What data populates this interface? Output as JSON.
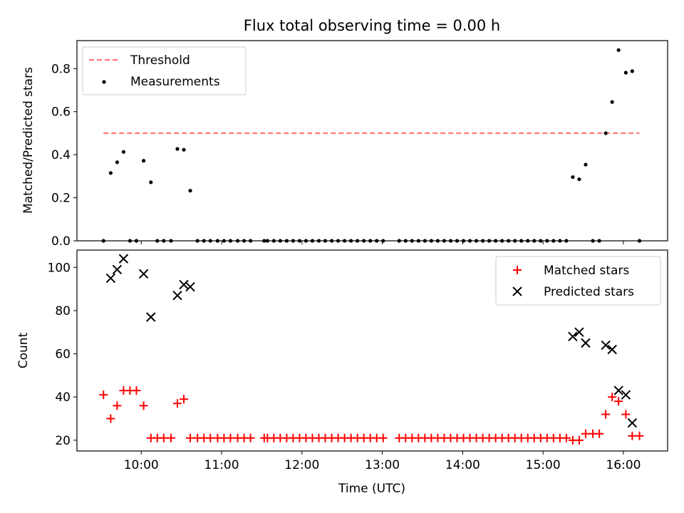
{
  "chart_data": [
    {
      "type": "scatter",
      "title": "Flux total observing time = 0.00 h",
      "xlabel": "",
      "ylabel": "Matched/Predicted stars",
      "xlim": [
        9.2,
        16.55
      ],
      "ylim": [
        0,
        0.93
      ],
      "xticks": [
        10,
        11,
        12,
        13,
        14,
        15,
        16
      ],
      "yticks": [
        0.0,
        0.2,
        0.4,
        0.6,
        0.8
      ],
      "ytick_labels": [
        "0.0",
        "0.2",
        "0.4",
        "0.6",
        "0.8"
      ],
      "grid": false,
      "legend": {
        "position": "top-left",
        "entries": [
          "Threshold",
          "Measurements"
        ]
      },
      "threshold": {
        "name": "Threshold",
        "value": 0.5,
        "x_range": [
          9.53,
          16.2
        ],
        "color": "#ff6b6b",
        "style": "dashed"
      },
      "series": [
        {
          "name": "Measurements",
          "color": "#000000",
          "marker": "dot",
          "points": [
            [
              9.53,
              0.0
            ],
            [
              9.62,
              0.315
            ],
            [
              9.7,
              0.365
            ],
            [
              9.78,
              0.413
            ],
            [
              9.86,
              0.0
            ],
            [
              9.94,
              0.0
            ],
            [
              10.03,
              0.372
            ],
            [
              10.12,
              0.272
            ],
            [
              10.2,
              0.0
            ],
            [
              10.28,
              0.0
            ],
            [
              10.37,
              0.0
            ],
            [
              10.45,
              0.427
            ],
            [
              10.53,
              0.423
            ],
            [
              10.61,
              0.233
            ],
            [
              10.7,
              0.0
            ],
            [
              10.78,
              0.0
            ],
            [
              10.86,
              0.0
            ],
            [
              10.95,
              0.0
            ],
            [
              11.03,
              0.0
            ],
            [
              11.11,
              0.0
            ],
            [
              11.2,
              0.0
            ],
            [
              11.28,
              0.0
            ],
            [
              11.36,
              0.0
            ],
            [
              11.53,
              0.0
            ],
            [
              11.57,
              0.0
            ],
            [
              11.65,
              0.0
            ],
            [
              11.73,
              0.0
            ],
            [
              11.81,
              0.0
            ],
            [
              11.89,
              0.0
            ],
            [
              11.97,
              0.0
            ],
            [
              12.05,
              0.0
            ],
            [
              12.13,
              0.0
            ],
            [
              12.21,
              0.0
            ],
            [
              12.29,
              0.0
            ],
            [
              12.37,
              0.0
            ],
            [
              12.45,
              0.0
            ],
            [
              12.53,
              0.0
            ],
            [
              12.61,
              0.0
            ],
            [
              12.69,
              0.0
            ],
            [
              12.77,
              0.0
            ],
            [
              12.85,
              0.0
            ],
            [
              12.93,
              0.0
            ],
            [
              13.01,
              0.0
            ],
            [
              13.21,
              0.0
            ],
            [
              13.29,
              0.0
            ],
            [
              13.37,
              0.0
            ],
            [
              13.45,
              0.0
            ],
            [
              13.53,
              0.0
            ],
            [
              13.61,
              0.0
            ],
            [
              13.69,
              0.0
            ],
            [
              13.77,
              0.0
            ],
            [
              13.85,
              0.0
            ],
            [
              13.93,
              0.0
            ],
            [
              14.01,
              0.0
            ],
            [
              14.09,
              0.0
            ],
            [
              14.17,
              0.0
            ],
            [
              14.25,
              0.0
            ],
            [
              14.33,
              0.0
            ],
            [
              14.41,
              0.0
            ],
            [
              14.49,
              0.0
            ],
            [
              14.57,
              0.0
            ],
            [
              14.65,
              0.0
            ],
            [
              14.73,
              0.0
            ],
            [
              14.81,
              0.0
            ],
            [
              14.89,
              0.0
            ],
            [
              14.97,
              0.0
            ],
            [
              15.05,
              0.0
            ],
            [
              15.13,
              0.0
            ],
            [
              15.21,
              0.0
            ],
            [
              15.29,
              0.0
            ],
            [
              15.37,
              0.296
            ],
            [
              15.45,
              0.286
            ],
            [
              15.53,
              0.354
            ],
            [
              15.62,
              0.0
            ],
            [
              15.7,
              0.0
            ],
            [
              15.78,
              0.5
            ],
            [
              15.86,
              0.645
            ],
            [
              15.94,
              0.886
            ],
            [
              16.03,
              0.781
            ],
            [
              16.11,
              0.788
            ],
            [
              16.2,
              0.0
            ]
          ]
        }
      ]
    },
    {
      "type": "scatter",
      "title": "",
      "xlabel": "Time (UTC)",
      "ylabel": "Count",
      "xlim": [
        9.2,
        16.55
      ],
      "ylim": [
        15,
        108
      ],
      "xticks": [
        10,
        11,
        12,
        13,
        14,
        15,
        16
      ],
      "xtick_labels": [
        "10:00",
        "11:00",
        "12:00",
        "13:00",
        "14:00",
        "15:00",
        "16:00"
      ],
      "yticks": [
        20,
        40,
        60,
        80,
        100
      ],
      "ytick_labels": [
        "20",
        "40",
        "60",
        "80",
        "100"
      ],
      "grid": false,
      "legend": {
        "position": "top-right",
        "entries": [
          "Matched stars",
          "Predicted stars"
        ]
      },
      "series": [
        {
          "name": "Matched stars",
          "color": "#ff0000",
          "marker": "plus",
          "points": [
            [
              9.53,
              41
            ],
            [
              9.62,
              30
            ],
            [
              9.7,
              36
            ],
            [
              9.78,
              43
            ],
            [
              9.86,
              43
            ],
            [
              9.94,
              43
            ],
            [
              10.03,
              36
            ],
            [
              10.12,
              21
            ],
            [
              10.2,
              21
            ],
            [
              10.28,
              21
            ],
            [
              10.37,
              21
            ],
            [
              10.45,
              37
            ],
            [
              10.53,
              39
            ],
            [
              10.61,
              21
            ],
            [
              10.7,
              21
            ],
            [
              10.78,
              21
            ],
            [
              10.86,
              21
            ],
            [
              10.95,
              21
            ],
            [
              11.03,
              21
            ],
            [
              11.11,
              21
            ],
            [
              11.2,
              21
            ],
            [
              11.28,
              21
            ],
            [
              11.36,
              21
            ],
            [
              11.53,
              21
            ],
            [
              11.57,
              21
            ],
            [
              11.65,
              21
            ],
            [
              11.73,
              21
            ],
            [
              11.81,
              21
            ],
            [
              11.89,
              21
            ],
            [
              11.97,
              21
            ],
            [
              12.05,
              21
            ],
            [
              12.13,
              21
            ],
            [
              12.21,
              21
            ],
            [
              12.29,
              21
            ],
            [
              12.37,
              21
            ],
            [
              12.45,
              21
            ],
            [
              12.53,
              21
            ],
            [
              12.61,
              21
            ],
            [
              12.69,
              21
            ],
            [
              12.77,
              21
            ],
            [
              12.85,
              21
            ],
            [
              12.93,
              21
            ],
            [
              13.01,
              21
            ],
            [
              13.21,
              21
            ],
            [
              13.29,
              21
            ],
            [
              13.37,
              21
            ],
            [
              13.45,
              21
            ],
            [
              13.53,
              21
            ],
            [
              13.61,
              21
            ],
            [
              13.69,
              21
            ],
            [
              13.77,
              21
            ],
            [
              13.85,
              21
            ],
            [
              13.93,
              21
            ],
            [
              14.01,
              21
            ],
            [
              14.09,
              21
            ],
            [
              14.17,
              21
            ],
            [
              14.25,
              21
            ],
            [
              14.33,
              21
            ],
            [
              14.41,
              21
            ],
            [
              14.49,
              21
            ],
            [
              14.57,
              21
            ],
            [
              14.65,
              21
            ],
            [
              14.73,
              21
            ],
            [
              14.81,
              21
            ],
            [
              14.89,
              21
            ],
            [
              14.97,
              21
            ],
            [
              15.05,
              21
            ],
            [
              15.13,
              21
            ],
            [
              15.21,
              21
            ],
            [
              15.29,
              21
            ],
            [
              15.37,
              20
            ],
            [
              15.45,
              20
            ],
            [
              15.53,
              23
            ],
            [
              15.62,
              23
            ],
            [
              15.7,
              23
            ],
            [
              15.78,
              32
            ],
            [
              15.86,
              40
            ],
            [
              15.94,
              38
            ],
            [
              16.03,
              32
            ],
            [
              16.11,
              22
            ],
            [
              16.2,
              22
            ]
          ]
        },
        {
          "name": "Predicted stars",
          "color": "#000000",
          "marker": "x",
          "points": [
            [
              9.62,
              95
            ],
            [
              9.7,
              99
            ],
            [
              9.78,
              104
            ],
            [
              10.03,
              97
            ],
            [
              10.12,
              77
            ],
            [
              10.45,
              87
            ],
            [
              10.53,
              92
            ],
            [
              10.61,
              91
            ],
            [
              15.37,
              68
            ],
            [
              15.45,
              70
            ],
            [
              15.53,
              65
            ],
            [
              15.78,
              64
            ],
            [
              15.86,
              62
            ],
            [
              15.94,
              43
            ],
            [
              16.03,
              41
            ],
            [
              16.11,
              28
            ]
          ]
        }
      ]
    }
  ]
}
